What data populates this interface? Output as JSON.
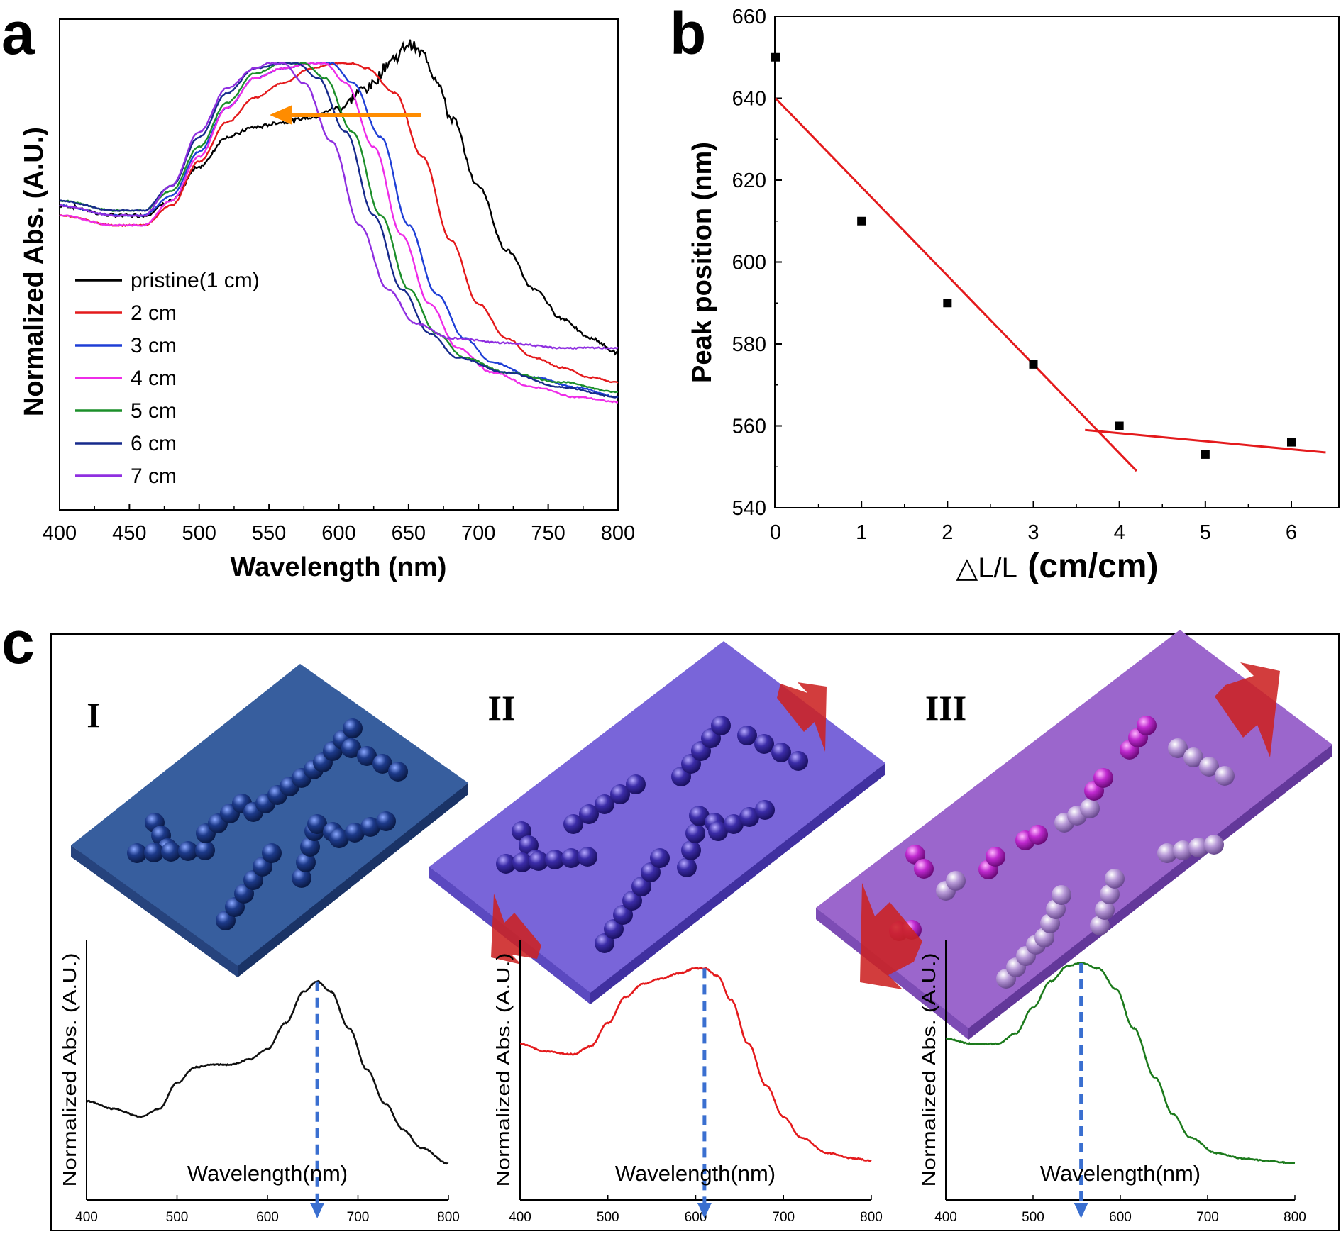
{
  "panels": {
    "a": {
      "letter": "a"
    },
    "b": {
      "letter": "b"
    },
    "c": {
      "letter": "c",
      "stages": [
        "I",
        "II",
        "III"
      ]
    }
  },
  "chart_data": [
    {
      "id": "a",
      "type": "line",
      "title": "",
      "xlabel": "Wavelength (nm)",
      "ylabel": "Normalized Abs. (A.U.)",
      "xlim": [
        400,
        800
      ],
      "xticks": [
        400,
        450,
        500,
        550,
        600,
        650,
        700,
        750,
        800
      ],
      "grid": false,
      "legend_position": "lower-left",
      "annotation": "orange arrow pointing toward shorter wavelength (blue shift)",
      "series": [
        {
          "name": "pristine(1 cm)",
          "color": "#000000",
          "noisy": true,
          "points": [
            [
              400,
              0.62
            ],
            [
              440,
              0.6
            ],
            [
              460,
              0.6
            ],
            [
              480,
              0.63
            ],
            [
              500,
              0.7
            ],
            [
              520,
              0.76
            ],
            [
              540,
              0.78
            ],
            [
              560,
              0.79
            ],
            [
              580,
              0.8
            ],
            [
              600,
              0.82
            ],
            [
              620,
              0.86
            ],
            [
              640,
              0.92
            ],
            [
              650,
              0.95
            ],
            [
              660,
              0.93
            ],
            [
              670,
              0.88
            ],
            [
              680,
              0.8
            ],
            [
              700,
              0.66
            ],
            [
              720,
              0.53
            ],
            [
              740,
              0.45
            ],
            [
              760,
              0.39
            ],
            [
              780,
              0.35
            ],
            [
              800,
              0.32
            ]
          ]
        },
        {
          "name": "2 cm",
          "color": "#e41a1c",
          "points": [
            [
              400,
              0.6
            ],
            [
              440,
              0.58
            ],
            [
              460,
              0.58
            ],
            [
              480,
              0.62
            ],
            [
              500,
              0.71
            ],
            [
              520,
              0.79
            ],
            [
              540,
              0.84
            ],
            [
              560,
              0.87
            ],
            [
              580,
              0.9
            ],
            [
              600,
              0.91
            ],
            [
              610,
              0.91
            ],
            [
              620,
              0.9
            ],
            [
              640,
              0.85
            ],
            [
              660,
              0.72
            ],
            [
              680,
              0.55
            ],
            [
              700,
              0.42
            ],
            [
              720,
              0.35
            ],
            [
              740,
              0.31
            ],
            [
              760,
              0.29
            ],
            [
              780,
              0.27
            ],
            [
              800,
              0.26
            ]
          ]
        },
        {
          "name": "3 cm",
          "color": "#1f3fd6",
          "points": [
            [
              400,
              0.62
            ],
            [
              440,
              0.6
            ],
            [
              460,
              0.6
            ],
            [
              480,
              0.64
            ],
            [
              500,
              0.73
            ],
            [
              520,
              0.82
            ],
            [
              540,
              0.88
            ],
            [
              560,
              0.9
            ],
            [
              580,
              0.91
            ],
            [
              595,
              0.91
            ],
            [
              610,
              0.87
            ],
            [
              630,
              0.76
            ],
            [
              650,
              0.58
            ],
            [
              670,
              0.44
            ],
            [
              690,
              0.35
            ],
            [
              710,
              0.3
            ],
            [
              740,
              0.27
            ],
            [
              770,
              0.25
            ],
            [
              800,
              0.23
            ]
          ]
        },
        {
          "name": "4 cm",
          "color": "#ee2ce8",
          "points": [
            [
              400,
              0.6
            ],
            [
              440,
              0.58
            ],
            [
              460,
              0.58
            ],
            [
              480,
              0.63
            ],
            [
              500,
              0.72
            ],
            [
              520,
              0.82
            ],
            [
              540,
              0.88
            ],
            [
              560,
              0.9
            ],
            [
              580,
              0.91
            ],
            [
              590,
              0.91
            ],
            [
              605,
              0.87
            ],
            [
              625,
              0.74
            ],
            [
              645,
              0.56
            ],
            [
              665,
              0.42
            ],
            [
              685,
              0.33
            ],
            [
              710,
              0.28
            ],
            [
              740,
              0.25
            ],
            [
              770,
              0.23
            ],
            [
              800,
              0.22
            ]
          ]
        },
        {
          "name": "5 cm",
          "color": "#1c8f2a",
          "points": [
            [
              400,
              0.63
            ],
            [
              440,
              0.61
            ],
            [
              460,
              0.61
            ],
            [
              480,
              0.65
            ],
            [
              500,
              0.74
            ],
            [
              520,
              0.83
            ],
            [
              540,
              0.89
            ],
            [
              560,
              0.91
            ],
            [
              575,
              0.91
            ],
            [
              590,
              0.88
            ],
            [
              610,
              0.77
            ],
            [
              630,
              0.6
            ],
            [
              650,
              0.45
            ],
            [
              670,
              0.36
            ],
            [
              690,
              0.31
            ],
            [
              720,
              0.28
            ],
            [
              760,
              0.26
            ],
            [
              800,
              0.24
            ]
          ]
        },
        {
          "name": "6 cm",
          "color": "#172a8c",
          "points": [
            [
              400,
              0.63
            ],
            [
              440,
              0.61
            ],
            [
              460,
              0.61
            ],
            [
              480,
              0.66
            ],
            [
              500,
              0.76
            ],
            [
              520,
              0.85
            ],
            [
              540,
              0.9
            ],
            [
              560,
              0.91
            ],
            [
              570,
              0.91
            ],
            [
              585,
              0.88
            ],
            [
              605,
              0.77
            ],
            [
              625,
              0.6
            ],
            [
              645,
              0.45
            ],
            [
              665,
              0.36
            ],
            [
              685,
              0.31
            ],
            [
              720,
              0.28
            ],
            [
              760,
              0.25
            ],
            [
              800,
              0.23
            ]
          ]
        },
        {
          "name": "7 cm",
          "color": "#8f2fe0",
          "points": [
            [
              400,
              0.62
            ],
            [
              440,
              0.6
            ],
            [
              460,
              0.6
            ],
            [
              480,
              0.66
            ],
            [
              500,
              0.77
            ],
            [
              520,
              0.86
            ],
            [
              540,
              0.9
            ],
            [
              550,
              0.91
            ],
            [
              560,
              0.91
            ],
            [
              575,
              0.87
            ],
            [
              595,
              0.75
            ],
            [
              615,
              0.58
            ],
            [
              635,
              0.45
            ],
            [
              655,
              0.38
            ],
            [
              680,
              0.35
            ],
            [
              720,
              0.34
            ],
            [
              760,
              0.33
            ],
            [
              800,
              0.33
            ]
          ]
        }
      ]
    },
    {
      "id": "b",
      "type": "scatter",
      "title": "",
      "xlabel": "△L/L",
      "xlabel_units": "(cm/cm)",
      "ylabel": "Peak position (nm)",
      "xlim": [
        0,
        6.5
      ],
      "ylim": [
        540,
        660
      ],
      "xticks": [
        0,
        1,
        2,
        3,
        4,
        5,
        6
      ],
      "yticks": [
        540,
        560,
        580,
        600,
        620,
        640,
        660
      ],
      "grid": false,
      "points": [
        [
          0,
          650
        ],
        [
          1,
          610
        ],
        [
          2,
          590
        ],
        [
          3,
          575
        ],
        [
          4,
          560
        ],
        [
          5,
          553
        ],
        [
          6,
          556
        ]
      ],
      "fit_lines": [
        {
          "color": "#e41a1c",
          "x": [
            0,
            4.2
          ],
          "y": [
            640,
            549
          ]
        },
        {
          "color": "#e41a1c",
          "x": [
            3.6,
            6.4
          ],
          "y": [
            559,
            553.5
          ]
        }
      ]
    },
    {
      "id": "c-I",
      "type": "line",
      "xlabel": "Wavelength(nm)",
      "ylabel": "Normalized Abs. (A.U.)",
      "xlim": [
        400,
        800
      ],
      "xticks": [
        400,
        500,
        600,
        700,
        800
      ],
      "peak_marker": 655,
      "series": [
        {
          "name": "I",
          "color": "#111111",
          "points": [
            [
              400,
              0.38
            ],
            [
              430,
              0.35
            ],
            [
              460,
              0.32
            ],
            [
              480,
              0.35
            ],
            [
              500,
              0.45
            ],
            [
              520,
              0.51
            ],
            [
              540,
              0.52
            ],
            [
              560,
              0.52
            ],
            [
              580,
              0.54
            ],
            [
              600,
              0.58
            ],
            [
              620,
              0.68
            ],
            [
              640,
              0.8
            ],
            [
              655,
              0.84
            ],
            [
              670,
              0.8
            ],
            [
              690,
              0.66
            ],
            [
              710,
              0.5
            ],
            [
              730,
              0.37
            ],
            [
              750,
              0.27
            ],
            [
              770,
              0.2
            ],
            [
              800,
              0.14
            ]
          ]
        }
      ]
    },
    {
      "id": "c-II",
      "type": "line",
      "xlabel": "Wavelength(nm)",
      "ylabel": "Normalized Abs. (A.U.)",
      "xlim": [
        400,
        800
      ],
      "xticks": [
        400,
        500,
        600,
        700,
        800
      ],
      "peak_marker": 610,
      "series": [
        {
          "name": "II",
          "color": "#e41a1c",
          "points": [
            [
              400,
              0.6
            ],
            [
              430,
              0.57
            ],
            [
              460,
              0.56
            ],
            [
              480,
              0.59
            ],
            [
              500,
              0.68
            ],
            [
              520,
              0.78
            ],
            [
              540,
              0.83
            ],
            [
              560,
              0.85
            ],
            [
              580,
              0.87
            ],
            [
              600,
              0.89
            ],
            [
              610,
              0.89
            ],
            [
              625,
              0.86
            ],
            [
              640,
              0.77
            ],
            [
              660,
              0.6
            ],
            [
              680,
              0.44
            ],
            [
              700,
              0.32
            ],
            [
              720,
              0.24
            ],
            [
              750,
              0.18
            ],
            [
              780,
              0.16
            ],
            [
              800,
              0.15
            ]
          ]
        }
      ]
    },
    {
      "id": "c-III",
      "type": "line",
      "xlabel": "Wavelength(nm)",
      "ylabel": "Normalized Abs. (A.U.)",
      "xlim": [
        400,
        800
      ],
      "xticks": [
        400,
        500,
        600,
        700,
        800
      ],
      "peak_marker": 555,
      "series": [
        {
          "name": "III",
          "color": "#1c7a1c",
          "points": [
            [
              400,
              0.62
            ],
            [
              430,
              0.6
            ],
            [
              460,
              0.6
            ],
            [
              480,
              0.64
            ],
            [
              500,
              0.74
            ],
            [
              520,
              0.84
            ],
            [
              540,
              0.9
            ],
            [
              555,
              0.91
            ],
            [
              575,
              0.89
            ],
            [
              595,
              0.81
            ],
            [
              615,
              0.66
            ],
            [
              640,
              0.47
            ],
            [
              660,
              0.33
            ],
            [
              680,
              0.24
            ],
            [
              710,
              0.18
            ],
            [
              740,
              0.16
            ],
            [
              770,
              0.15
            ],
            [
              800,
              0.14
            ]
          ]
        }
      ]
    }
  ],
  "colors": {
    "arrow_orange": "#ff8c00",
    "peak_dash": "#3a6fd0",
    "plate_I": "#335a99",
    "plate_II": "#7563d6",
    "plate_III": "#9a62c8",
    "stretch_arrow": "#cc2222"
  }
}
